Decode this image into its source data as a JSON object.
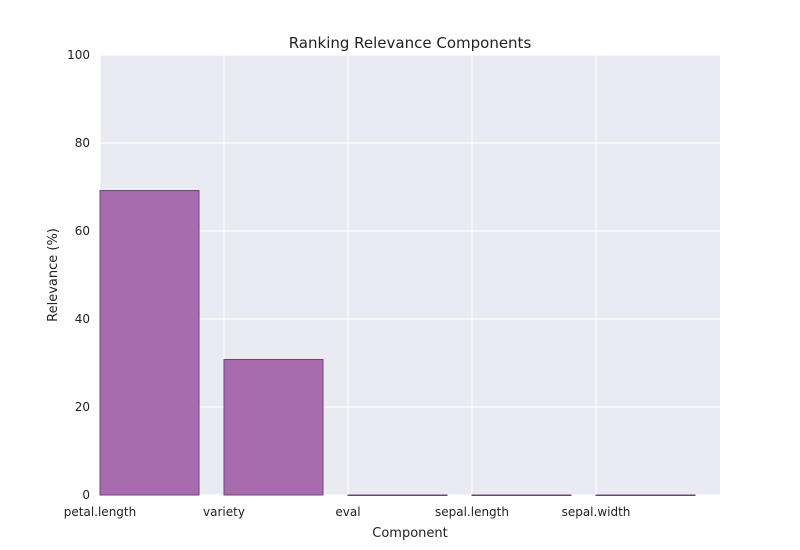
{
  "chart_data": {
    "type": "bar",
    "title": "Ranking Relevance Components",
    "xlabel": "Component",
    "ylabel": "Relevance (%)",
    "categories": [
      "petal.length",
      "variety",
      "eval",
      "sepal.length",
      "sepal.width"
    ],
    "values": [
      69.2,
      30.8,
      0.0,
      0.0,
      0.0
    ],
    "ylim": [
      0,
      100
    ],
    "yticks": [
      0,
      20,
      40,
      60,
      80,
      100
    ],
    "grid": true,
    "legend": "none",
    "colors": {
      "bar_fill": "#a86cae",
      "bar_edge": "#6f4374",
      "plot_background": "#eaeaf2",
      "grid": "#ffffff"
    }
  }
}
